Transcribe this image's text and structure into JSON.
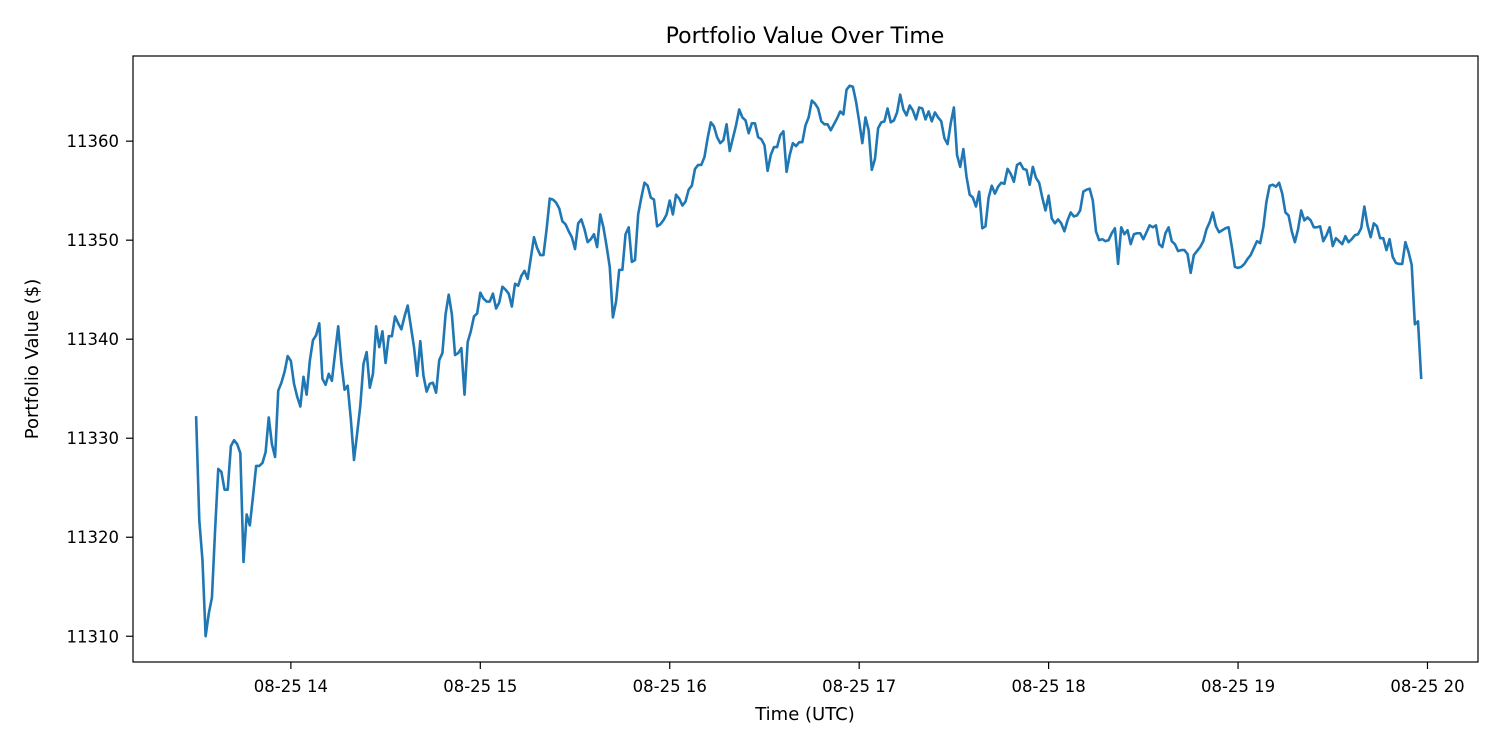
{
  "chart_data": {
    "type": "line",
    "title": "Portfolio Value Over Time",
    "xlabel": "Time (UTC)",
    "ylabel": "Portfolio Value ($)",
    "x_start": "2025-08-25T13:30",
    "x_end": "2025-08-25T19:58",
    "xlim": [
      "2025-08-25T13:10",
      "2025-08-25T20:16"
    ],
    "ylim": [
      11307.4,
      11368.6
    ],
    "grid": false,
    "legend": "none",
    "color": "#1f77b4",
    "x_ticks": [
      {
        "t": "2025-08-25T14:00",
        "label": "08-25 14"
      },
      {
        "t": "2025-08-25T15:00",
        "label": "08-25 15"
      },
      {
        "t": "2025-08-25T16:00",
        "label": "08-25 16"
      },
      {
        "t": "2025-08-25T17:00",
        "label": "08-25 17"
      },
      {
        "t": "2025-08-25T18:00",
        "label": "08-25 18"
      },
      {
        "t": "2025-08-25T19:00",
        "label": "08-25 19"
      },
      {
        "t": "2025-08-25T20:00",
        "label": "08-25 20"
      }
    ],
    "y_ticks": [
      {
        "v": 11310,
        "label": "11310"
      },
      {
        "v": 11320,
        "label": "11320"
      },
      {
        "v": 11330,
        "label": "11330"
      },
      {
        "v": 11340,
        "label": "11340"
      },
      {
        "v": 11350,
        "label": "11350"
      },
      {
        "v": 11360,
        "label": "11360"
      }
    ],
    "values": [
      11332.1,
      11321.7,
      11317.7,
      11310.0,
      11312.3,
      11313.9,
      11320.7,
      11326.9,
      11326.6,
      11324.8,
      11324.8,
      11329.2,
      11329.8,
      11329.4,
      11328.5,
      11317.5,
      11322.3,
      11321.2,
      11324.1,
      11327.2,
      11327.2,
      11327.5,
      11328.6,
      11332.1,
      11329.4,
      11328.1,
      11334.8,
      11335.6,
      11336.7,
      11338.3,
      11337.8,
      11335.5,
      11334.2,
      11333.2,
      11336.2,
      11334.4,
      11337.8,
      11339.9,
      11340.4,
      11341.6,
      11336.0,
      11335.4,
      11336.5,
      11335.8,
      11338.6,
      11341.3,
      11337.6,
      11334.9,
      11335.3,
      11331.9,
      11327.8,
      11330.5,
      11333.3,
      11337.5,
      11338.7,
      11335.1,
      11336.5,
      11341.3,
      11339.2,
      11340.8,
      11337.6,
      11340.3,
      11340.3,
      11342.3,
      11341.6,
      11341.0,
      11342.3,
      11343.4,
      11341.3,
      11339.2,
      11336.3,
      11339.8,
      11336.3,
      11334.7,
      11335.5,
      11335.6,
      11334.6,
      11337.9,
      11338.6,
      11342.5,
      11344.5,
      11342.5,
      11338.4,
      11338.6,
      11339.1,
      11334.4,
      11339.7,
      11340.8,
      11342.3,
      11342.6,
      11344.7,
      11344.1,
      11343.8,
      11343.8,
      11344.6,
      11343.1,
      11343.7,
      11345.3,
      11345.0,
      11344.6,
      11343.3,
      11345.6,
      11345.4,
      11346.4,
      11346.9,
      11346.1,
      11348.2,
      11350.3,
      11349.2,
      11348.5,
      11348.5,
      11351.1,
      11354.2,
      11354.1,
      11353.8,
      11353.2,
      11351.9,
      11351.6,
      11350.9,
      11350.3,
      11349.1,
      11351.7,
      11352.1,
      11351.1,
      11349.8,
      11350.1,
      11350.6,
      11349.3,
      11352.6,
      11351.3,
      11349.4,
      11347.3,
      11342.2,
      11343.8,
      11347.0,
      11347.0,
      11350.6,
      11351.3,
      11347.8,
      11348.0,
      11352.6,
      11354.3,
      11355.8,
      11355.5,
      11354.3,
      11354.1,
      11351.4,
      11351.6,
      11352.0,
      11352.6,
      11354.0,
      11352.6,
      11354.6,
      11354.2,
      11353.5,
      11353.9,
      11355.1,
      11355.5,
      11357.2,
      11357.6,
      11357.6,
      11358.4,
      11360.3,
      11361.9,
      11361.5,
      11360.4,
      11359.8,
      11360.1,
      11361.7,
      11359.0,
      11360.3,
      11361.6,
      11363.2,
      11362.4,
      11362.1,
      11360.8,
      11361.8,
      11361.8,
      11360.4,
      11360.2,
      11359.6,
      11357.0,
      11358.6,
      11359.4,
      11359.4,
      11360.6,
      11361.0,
      11356.9,
      11358.6,
      11359.8,
      11359.5,
      11359.9,
      11359.9,
      11361.6,
      11362.4,
      11364.1,
      11363.8,
      11363.3,
      11362.0,
      11361.7,
      11361.7,
      11361.1,
      11361.7,
      11362.3,
      11363.0,
      11362.7,
      11365.2,
      11365.6,
      11365.5,
      11364.0,
      11362.0,
      11359.8,
      11362.4,
      11361.1,
      11357.1,
      11358.2,
      11361.3,
      11361.9,
      11362.0,
      11363.3,
      11361.9,
      11362.1,
      11362.9,
      11364.7,
      11363.2,
      11362.6,
      11363.6,
      11363.1,
      11362.2,
      11363.4,
      11363.3,
      11362.2,
      11363.0,
      11362.0,
      11362.9,
      11362.4,
      11362.0,
      11360.3,
      11359.7,
      11361.8,
      11363.4,
      11358.6,
      11357.4,
      11359.2,
      11356.4,
      11354.6,
      11354.3,
      11353.4,
      11354.9,
      11351.2,
      11351.4,
      11354.3,
      11355.5,
      11354.7,
      11355.4,
      11355.8,
      11355.7,
      11357.2,
      11356.7,
      11355.9,
      11357.6,
      11357.8,
      11357.2,
      11357.1,
      11355.6,
      11357.4,
      11356.3,
      11355.8,
      11354.3,
      11353.0,
      11354.5,
      11352.2,
      11351.7,
      11352.1,
      11351.7,
      11350.9,
      11352.0,
      11352.8,
      11352.4,
      11352.5,
      11353.0,
      11354.9,
      11355.1,
      11355.2,
      11354.0,
      11350.9,
      11350.0,
      11350.1,
      11349.9,
      11350.0,
      11350.7,
      11351.2,
      11347.6,
      11351.3,
      11350.6,
      11351.0,
      11349.6,
      11350.6,
      11350.7,
      11350.7,
      11350.1,
      11350.8,
      11351.5,
      11351.3,
      11351.5,
      11349.6,
      11349.3,
      11350.7,
      11351.3,
      11349.9,
      11349.6,
      11348.9,
      11349.0,
      11349.0,
      11348.6,
      11346.7,
      11348.5,
      11348.9,
      11349.3,
      11349.9,
      11351.1,
      11351.8,
      11352.8,
      11351.4,
      11350.8,
      11351.0,
      11351.2,
      11351.3,
      11349.4,
      11347.3,
      11347.2,
      11347.3,
      11347.6,
      11348.1,
      11348.5,
      11349.2,
      11349.9,
      11349.7,
      11351.3,
      11353.9,
      11355.5,
      11355.6,
      11355.4,
      11355.8,
      11354.7,
      11352.8,
      11352.5,
      11350.9,
      11349.8,
      11351.1,
      11353.0,
      11352.0,
      11352.3,
      11352.0,
      11351.3,
      11351.3,
      11351.4,
      11349.9,
      11350.5,
      11351.3,
      11349.4,
      11350.2,
      11349.9,
      11349.6,
      11350.4,
      11349.8,
      11350.1,
      11350.5,
      11350.6,
      11351.2,
      11353.4,
      11351.5,
      11350.3,
      11351.7,
      11351.4,
      11350.2,
      11350.2,
      11349.0,
      11350.1,
      11348.3,
      11347.7,
      11347.6,
      11347.6,
      11349.8,
      11348.8,
      11347.5,
      11341.5,
      11341.8,
      11336.1
    ]
  }
}
